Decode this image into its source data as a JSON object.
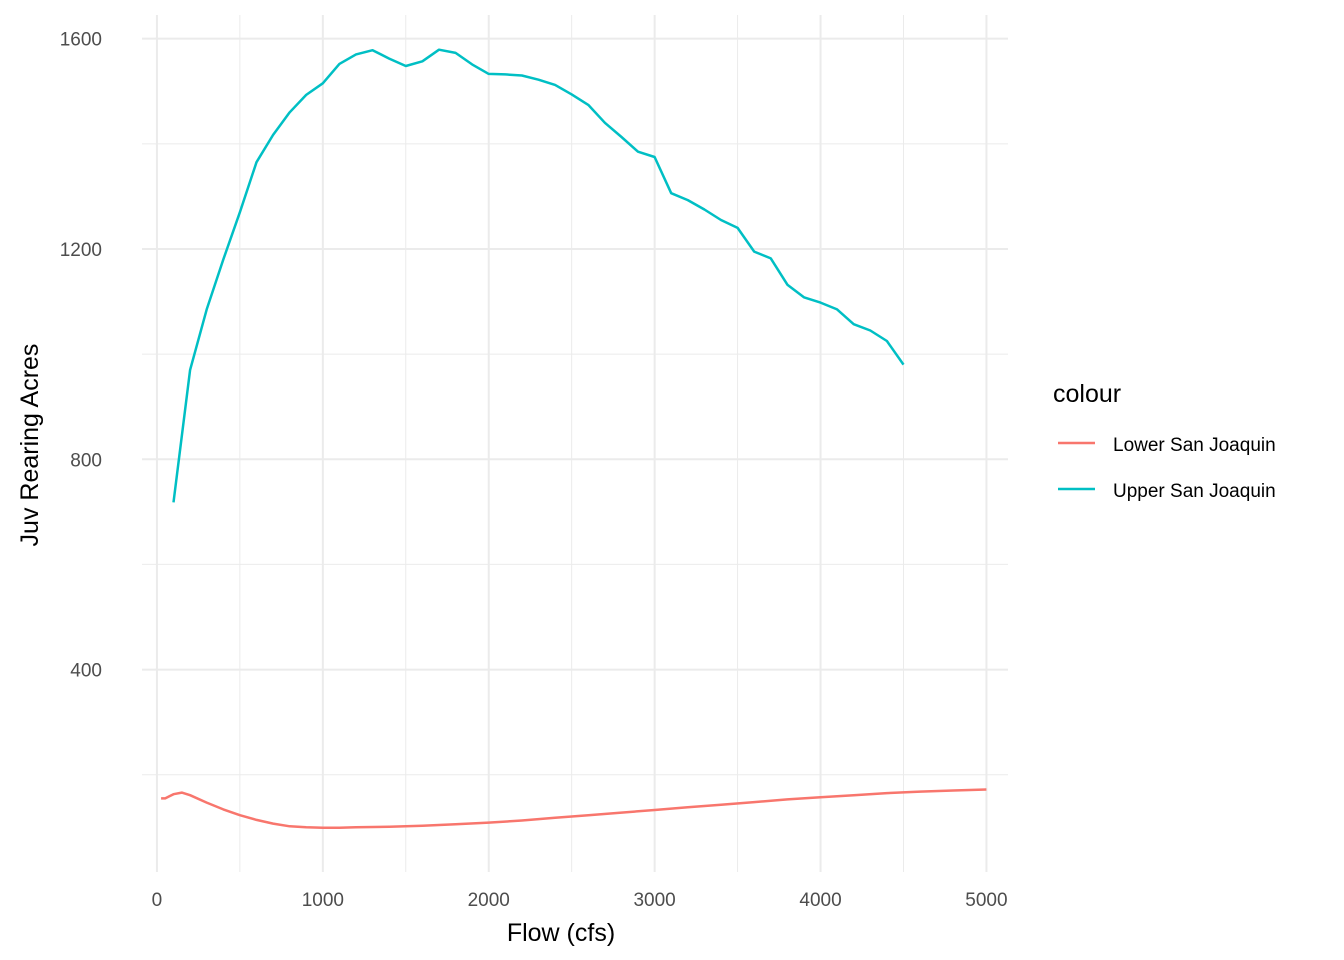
{
  "chart_data": {
    "type": "line",
    "xlabel": "Flow (cfs)",
    "ylabel": "Juv Rearing Acres",
    "xlim": [
      -90,
      5130
    ],
    "ylim": [
      15,
      1645
    ],
    "x_ticks": [
      0,
      1000,
      2000,
      3000,
      4000,
      5000
    ],
    "x_tick_labels": [
      "0",
      "1000",
      "2000",
      "3000",
      "4000",
      "5000"
    ],
    "x_minor_ticks": [
      500,
      1500,
      2500,
      3500,
      4500
    ],
    "y_ticks": [
      400,
      800,
      1200,
      1600
    ],
    "y_tick_labels": [
      "400",
      "800",
      "1200",
      "1600"
    ],
    "y_minor_ticks": [
      200,
      600,
      1000,
      1400
    ],
    "grid": true,
    "legend": {
      "title": "colour",
      "placement": "right",
      "entries": [
        "Lower San Joaquin",
        "Upper San Joaquin"
      ]
    },
    "series": [
      {
        "name": "Lower San Joaquin",
        "color": "#F8766D",
        "points": [
          [
            25,
            155
          ],
          [
            50,
            155
          ],
          [
            75,
            159
          ],
          [
            100,
            163
          ],
          [
            150,
            166
          ],
          [
            200,
            161
          ],
          [
            300,
            147
          ],
          [
            400,
            134
          ],
          [
            500,
            123
          ],
          [
            600,
            114
          ],
          [
            700,
            107
          ],
          [
            800,
            102
          ],
          [
            900,
            100
          ],
          [
            1000,
            99
          ],
          [
            1100,
            99
          ],
          [
            1200,
            100
          ],
          [
            1400,
            101
          ],
          [
            1600,
            103
          ],
          [
            1800,
            106
          ],
          [
            2000,
            109
          ],
          [
            2200,
            113
          ],
          [
            2400,
            118
          ],
          [
            2600,
            123
          ],
          [
            2800,
            128
          ],
          [
            3000,
            133
          ],
          [
            3200,
            138
          ],
          [
            3400,
            143
          ],
          [
            3600,
            148
          ],
          [
            3800,
            153
          ],
          [
            4000,
            157
          ],
          [
            4200,
            161
          ],
          [
            4400,
            165
          ],
          [
            4600,
            168
          ],
          [
            4800,
            170
          ],
          [
            5000,
            172
          ]
        ]
      },
      {
        "name": "Upper San Joaquin",
        "color": "#00BFC4",
        "points": [
          [
            100,
            718
          ],
          [
            200,
            970
          ],
          [
            300,
            1085
          ],
          [
            400,
            1180
          ],
          [
            500,
            1270
          ],
          [
            600,
            1365
          ],
          [
            700,
            1417
          ],
          [
            800,
            1460
          ],
          [
            900,
            1493
          ],
          [
            1000,
            1515
          ],
          [
            1100,
            1552
          ],
          [
            1200,
            1570
          ],
          [
            1300,
            1578
          ],
          [
            1400,
            1562
          ],
          [
            1500,
            1548
          ],
          [
            1600,
            1557
          ],
          [
            1700,
            1579
          ],
          [
            1800,
            1573
          ],
          [
            1900,
            1551
          ],
          [
            2000,
            1533
          ],
          [
            2100,
            1532
          ],
          [
            2200,
            1530
          ],
          [
            2300,
            1522
          ],
          [
            2400,
            1512
          ],
          [
            2500,
            1494
          ],
          [
            2600,
            1474
          ],
          [
            2700,
            1440
          ],
          [
            2800,
            1413
          ],
          [
            2900,
            1385
          ],
          [
            3000,
            1375
          ],
          [
            3100,
            1306
          ],
          [
            3200,
            1293
          ],
          [
            3300,
            1275
          ],
          [
            3400,
            1255
          ],
          [
            3500,
            1240
          ],
          [
            3600,
            1195
          ],
          [
            3700,
            1182
          ],
          [
            3800,
            1132
          ],
          [
            3900,
            1108
          ],
          [
            4000,
            1098
          ],
          [
            4100,
            1085
          ],
          [
            4200,
            1057
          ],
          [
            4300,
            1045
          ],
          [
            4400,
            1025
          ],
          [
            4500,
            980
          ]
        ]
      }
    ]
  }
}
